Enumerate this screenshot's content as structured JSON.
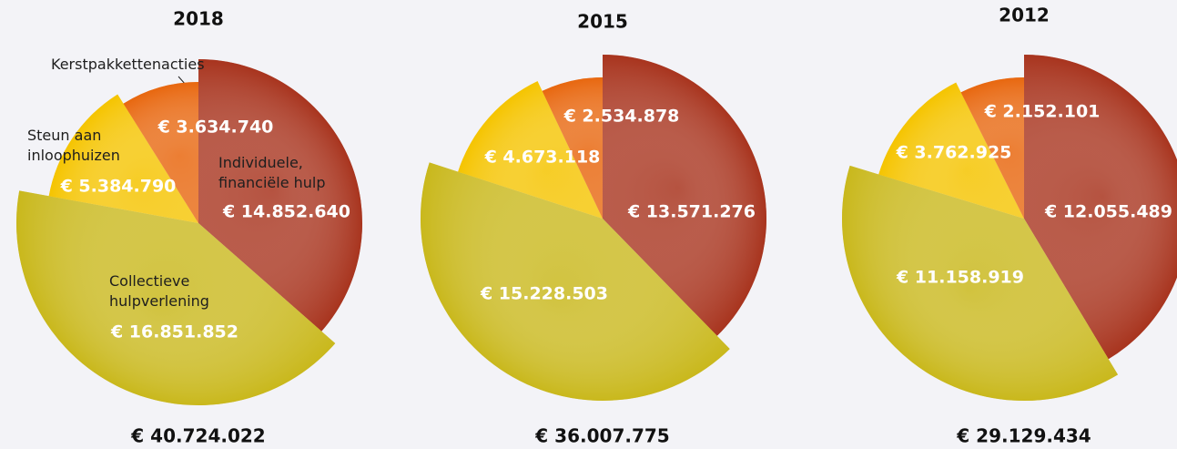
{
  "chart_data": [
    {
      "type": "pie",
      "title": "2018",
      "categories": [
        "Individuele, financiële hulp",
        "Collectieve hulpverlening",
        "Steun aan inloophuizen",
        "Kerstpakkettenacties"
      ],
      "values": [
        14852640,
        16851852,
        5384790,
        3634740
      ],
      "value_labels": [
        "€ 14.852.640",
        "€ 16.851.852",
        "€ 5.384.790",
        "€ 3.634.740"
      ],
      "colors": [
        "#a8341e",
        "#c9b81c",
        "#f5c400",
        "#e8670f"
      ],
      "total": 40724022,
      "total_label": "€ 40.724.022"
    },
    {
      "type": "pie",
      "title": "2015",
      "categories": [
        null,
        null,
        null,
        null
      ],
      "values": [
        13571276,
        15228503,
        4673118,
        2534878
      ],
      "value_labels": [
        "€ 13.571.276",
        "€ 15.228.503",
        "€ 4.673.118",
        "€ 2.534.878"
      ],
      "colors": [
        "#a8341e",
        "#c9b81c",
        "#f5c400",
        "#e8670f"
      ],
      "total": 36007775,
      "total_label": "€ 36.007.775"
    },
    {
      "type": "pie",
      "title": "2012",
      "categories": [
        null,
        null,
        null,
        null
      ],
      "values": [
        12055489,
        11158919,
        3762925,
        2152101
      ],
      "value_labels": [
        "€ 12.055.489",
        "€ 11.158.919",
        "€ 3.762.925",
        "€ 2.152.101"
      ],
      "colors": [
        "#a8341e",
        "#c9b81c",
        "#f5c400",
        "#e8670f"
      ],
      "total": 29129434,
      "total_label": "€ 29.129.434"
    }
  ]
}
